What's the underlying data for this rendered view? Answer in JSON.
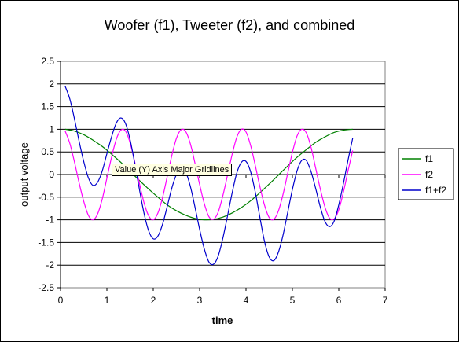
{
  "chart_data": {
    "type": "line",
    "title": "Woofer (f1), Tweeter (f2), and combined",
    "xlabel": "time",
    "ylabel": "output voltage",
    "xlim": [
      0,
      7
    ],
    "ylim": [
      -2.5,
      2.5
    ],
    "xticks": [
      "0",
      "1",
      "2",
      "3",
      "4",
      "5",
      "6",
      "7"
    ],
    "yticks": [
      "2.5",
      "2",
      "1.5",
      "1",
      "0.5",
      "0",
      "-0.5",
      "-1",
      "-1.5",
      "-2",
      "-2.5"
    ],
    "grid": "horizontal major gridlines",
    "legend": "right",
    "series": [
      {
        "name": "f1",
        "color": "#008000",
        "x": [
          0.1,
          0.3,
          0.5,
          0.7,
          0.9,
          1.1,
          1.3,
          1.5,
          1.7,
          1.9,
          2.1,
          2.3,
          2.5,
          2.7,
          2.9,
          3.1,
          3.3,
          3.5,
          3.7,
          3.9,
          4.1,
          4.3,
          4.5,
          4.7,
          4.9,
          5.1,
          5.3,
          5.5,
          5.7,
          5.9,
          6.1,
          6.3
        ],
        "y": [
          1.0,
          0.96,
          0.88,
          0.76,
          0.62,
          0.45,
          0.27,
          0.07,
          -0.13,
          -0.32,
          -0.5,
          -0.67,
          -0.8,
          -0.9,
          -0.97,
          -1.0,
          -0.99,
          -0.94,
          -0.85,
          -0.73,
          -0.58,
          -0.4,
          -0.21,
          -0.01,
          0.19,
          0.38,
          0.55,
          0.71,
          0.83,
          0.93,
          0.98,
          1.0
        ]
      },
      {
        "name": "f2",
        "color": "#ff00ff",
        "x": [
          0.1,
          0.2,
          0.3,
          0.4,
          0.5,
          0.6,
          0.7,
          0.8,
          0.9,
          1.0,
          1.1,
          1.2,
          1.3,
          1.4,
          1.5,
          1.6,
          1.7,
          1.8,
          1.9,
          2.0,
          2.1,
          2.2,
          2.3,
          2.4,
          2.5,
          2.6,
          2.7,
          2.8,
          2.9,
          3.0,
          3.1,
          3.2,
          3.3,
          3.4,
          3.5,
          3.6,
          3.7,
          3.8,
          3.9,
          4.0,
          4.1,
          4.2,
          4.3,
          4.4,
          4.5,
          4.6,
          4.7,
          4.8,
          4.9,
          5.0,
          5.1,
          5.2,
          5.3,
          5.4,
          5.5,
          5.6,
          5.7,
          5.8,
          5.9,
          6.0,
          6.1,
          6.2,
          6.3
        ],
        "y": [
          0.96,
          0.69,
          0.28,
          -0.18,
          -0.59,
          -0.9,
          -1.0,
          -0.87,
          -0.54,
          -0.08,
          0.38,
          0.77,
          0.98,
          0.96,
          0.7,
          0.28,
          -0.19,
          -0.62,
          -0.91,
          -1.0,
          -0.85,
          -0.51,
          -0.05,
          0.42,
          0.8,
          0.99,
          0.95,
          0.68,
          0.25,
          -0.22,
          -0.64,
          -0.93,
          -0.99,
          -0.83,
          -0.47,
          -0.02,
          0.44,
          0.82,
          1.0,
          0.94,
          0.64,
          0.2,
          -0.27,
          -0.68,
          -0.95,
          -0.99,
          -0.8,
          -0.43,
          0.03,
          0.49,
          0.85,
          1.0,
          0.92,
          0.61,
          0.15,
          -0.31,
          -0.71,
          -0.96,
          -0.98,
          -0.78,
          -0.39,
          0.08,
          0.53
        ]
      },
      {
        "name": "f1+f2",
        "color": "#0000cc",
        "x": [
          0.1,
          0.2,
          0.3,
          0.4,
          0.5,
          0.6,
          0.7,
          0.8,
          0.9,
          1.0,
          1.1,
          1.2,
          1.3,
          1.4,
          1.5,
          1.6,
          1.7,
          1.8,
          1.9,
          2.0,
          2.1,
          2.2,
          2.3,
          2.4,
          2.5,
          2.6,
          2.7,
          2.8,
          2.9,
          3.0,
          3.1,
          3.2,
          3.3,
          3.4,
          3.5,
          3.6,
          3.7,
          3.8,
          3.9,
          4.0,
          4.1,
          4.2,
          4.3,
          4.4,
          4.5,
          4.6,
          4.7,
          4.8,
          4.9,
          5.0,
          5.1,
          5.2,
          5.3,
          5.4,
          5.5,
          5.6,
          5.7,
          5.8,
          5.9,
          6.0,
          6.1,
          6.2,
          6.3
        ],
        "y": [
          1.95,
          1.67,
          1.23,
          0.74,
          0.29,
          -0.07,
          -0.24,
          -0.17,
          0.08,
          0.46,
          0.83,
          1.13,
          1.25,
          1.13,
          0.77,
          0.25,
          -0.32,
          -0.85,
          -1.24,
          -1.42,
          -1.36,
          -1.1,
          -0.71,
          -0.3,
          0.0,
          0.13,
          0.05,
          -0.26,
          -0.72,
          -1.21,
          -1.64,
          -1.93,
          -1.98,
          -1.8,
          -1.41,
          -0.92,
          -0.41,
          0.03,
          0.27,
          0.29,
          0.06,
          -0.39,
          -0.95,
          -1.48,
          -1.82,
          -1.9,
          -1.71,
          -1.33,
          -0.83,
          -0.33,
          0.08,
          0.31,
          0.31,
          0.07,
          -0.3,
          -0.71,
          -1.03,
          -1.15,
          -1.03,
          -0.67,
          -0.2,
          0.32,
          0.8
        ]
      }
    ]
  },
  "tooltip": {
    "text": "Value (Y) Axis Major Gridlines"
  }
}
